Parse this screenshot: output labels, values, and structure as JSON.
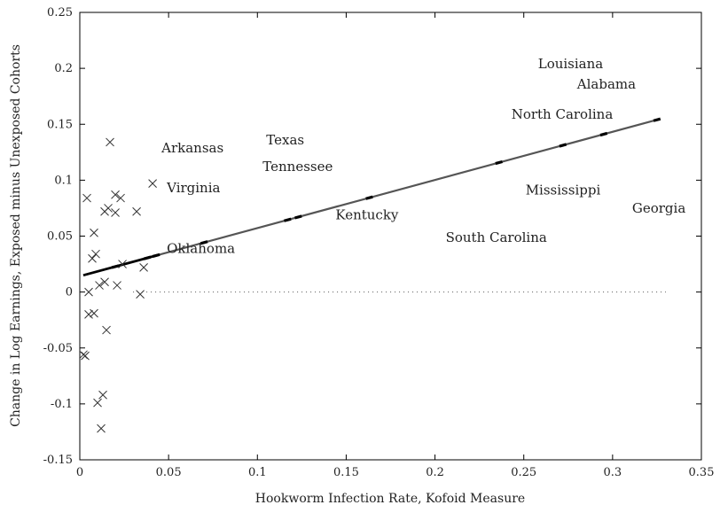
{
  "chart_data": {
    "type": "scatter",
    "title": "",
    "xlabel": "Hookworm Infection Rate, Kofoid Measure",
    "ylabel": "Change in Log Earnings, Exposed minus Unexposed Cohorts",
    "xlim": [
      0,
      0.35
    ],
    "ylim": [
      -0.15,
      0.25
    ],
    "xticks": [
      0,
      0.05,
      0.1,
      0.15,
      0.2,
      0.25,
      0.3,
      0.35
    ],
    "xtick_labels": [
      "0",
      "0.05",
      "0.1",
      "0.15",
      "0.2",
      "0.25",
      "0.3",
      "0.35"
    ],
    "yticks": [
      -0.15,
      -0.1,
      -0.05,
      0,
      0.05,
      0.1,
      0.15,
      0.2,
      0.25
    ],
    "ytick_labels": [
      "-0.15",
      "-0.1",
      "-0.05",
      "0",
      "0.05",
      "0.1",
      "0.15",
      "0.2",
      "0.25"
    ],
    "grid": false,
    "zero_reference_line": "dotted",
    "labeled_points": [
      {
        "label": "Louisiana",
        "x": 0.258,
        "y": 0.204
      },
      {
        "label": "Alabama",
        "x": 0.28,
        "y": 0.186
      },
      {
        "label": "North Carolina",
        "x": 0.243,
        "y": 0.159
      },
      {
        "label": "Arkansas",
        "x": 0.046,
        "y": 0.129
      },
      {
        "label": "Texas",
        "x": 0.105,
        "y": 0.136
      },
      {
        "label": "Tennessee",
        "x": 0.103,
        "y": 0.112
      },
      {
        "label": "Virginia",
        "x": 0.049,
        "y": 0.093
      },
      {
        "label": "Mississippi",
        "x": 0.251,
        "y": 0.091
      },
      {
        "label": "Georgia",
        "x": 0.311,
        "y": 0.075
      },
      {
        "label": "Kentucky",
        "x": 0.144,
        "y": 0.069
      },
      {
        "label": "South Carolina",
        "x": 0.206,
        "y": 0.049
      },
      {
        "label": "Oklahoma",
        "x": 0.049,
        "y": 0.039
      }
    ],
    "x_marker_points": [
      {
        "x": 0.017,
        "y": 0.134
      },
      {
        "x": 0.041,
        "y": 0.097
      },
      {
        "x": 0.004,
        "y": 0.084
      },
      {
        "x": 0.02,
        "y": 0.087
      },
      {
        "x": 0.023,
        "y": 0.084
      },
      {
        "x": 0.014,
        "y": 0.072
      },
      {
        "x": 0.016,
        "y": 0.075
      },
      {
        "x": 0.02,
        "y": 0.071
      },
      {
        "x": 0.032,
        "y": 0.072
      },
      {
        "x": 0.008,
        "y": 0.053
      },
      {
        "x": 0.009,
        "y": 0.034
      },
      {
        "x": 0.007,
        "y": 0.03
      },
      {
        "x": 0.024,
        "y": 0.025
      },
      {
        "x": 0.036,
        "y": 0.022
      },
      {
        "x": 0.014,
        "y": 0.009
      },
      {
        "x": 0.011,
        "y": 0.006
      },
      {
        "x": 0.021,
        "y": 0.006
      },
      {
        "x": 0.005,
        "y": 0.0
      },
      {
        "x": 0.034,
        "y": -0.002
      },
      {
        "x": 0.005,
        "y": -0.02
      },
      {
        "x": 0.008,
        "y": -0.019
      },
      {
        "x": 0.015,
        "y": -0.034
      },
      {
        "x": 0.002,
        "y": -0.056
      },
      {
        "x": 0.003,
        "y": -0.057
      },
      {
        "x": 0.013,
        "y": -0.092
      },
      {
        "x": 0.01,
        "y": -0.099
      },
      {
        "x": 0.012,
        "y": -0.122
      }
    ],
    "fit_line": {
      "x": [
        0.002,
        0.325
      ],
      "y": [
        0.015,
        0.154
      ]
    },
    "fit_line_ticks_x": [
      0.02,
      0.038,
      0.043,
      0.07,
      0.117,
      0.123,
      0.163,
      0.236,
      0.272,
      0.295,
      0.325
    ],
    "colors": {
      "fit_line": "#555555",
      "fit_line_thick": "#000000",
      "markers": "#333333",
      "axis": "#000000"
    }
  }
}
